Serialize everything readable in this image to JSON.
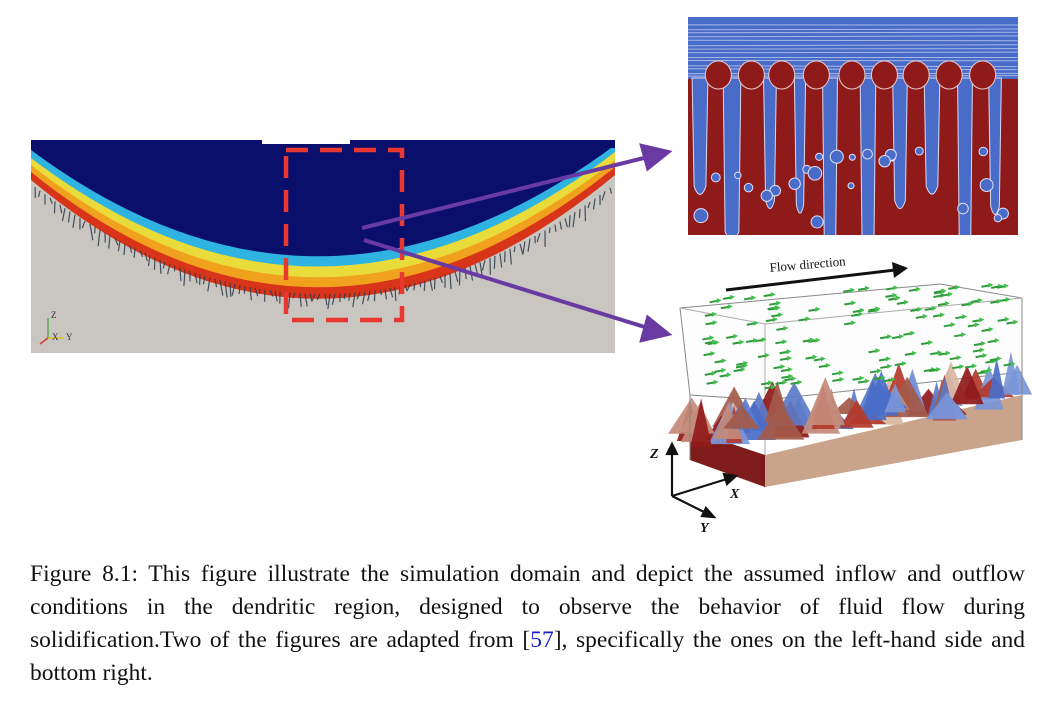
{
  "figure": {
    "flow_label": "Flow direction",
    "left_axes": {
      "z": "Z",
      "x": "X",
      "y": "Y"
    },
    "right_axes": {
      "z": "Z",
      "x": "X",
      "y": "Y"
    },
    "colors": {
      "liquid": "#0a0f6b",
      "solid": "#c9c6c1",
      "highlight_box": "#e8382f",
      "arrow": "#6a3aa3",
      "dendrite_red": "#8f1a1a",
      "dendrite_blue": "#4a6cc9"
    }
  },
  "caption": {
    "label": "Figure 8.1:",
    "text_before_ref": " This figure illustrate the simulation domain and depict the assumed inflow and outflow conditions in the dendritic region, designed to observe the behavior of fluid flow during solidification.Two of the figures are adapted from [",
    "ref": "57",
    "text_after_ref": "], specifically the ones on the left-hand side and bottom right."
  }
}
